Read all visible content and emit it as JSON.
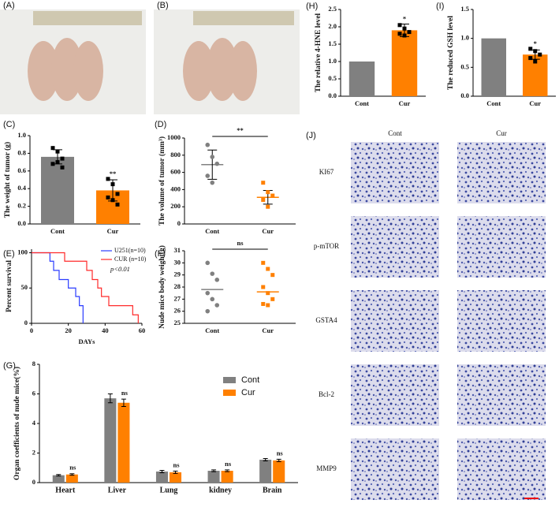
{
  "photos": [
    {
      "label": "(A)"
    },
    {
      "label": "(B)"
    }
  ],
  "ihc": {
    "label": "(J)",
    "columns": [
      "Cont",
      "Cur"
    ],
    "rows": [
      "KI67",
      "p-mTOR",
      "GSTA4",
      "Bcl-2",
      "MMP9"
    ]
  },
  "chart_data": [
    {
      "type": "bar",
      "panel": "(C)",
      "ylabel": "The weight of tumor (g)",
      "categories": [
        "Cont",
        "Cur"
      ],
      "values": [
        0.76,
        0.38
      ],
      "errors": [
        0.08,
        0.12
      ],
      "colors": [
        "#808080",
        "#ff8000"
      ],
      "points": [
        [
          0.86,
          0.82,
          0.74,
          0.68,
          0.7,
          0.64
        ],
        [
          0.51,
          0.45,
          0.34,
          0.3,
          0.27,
          0.22
        ]
      ],
      "significance": [
        null,
        "**"
      ],
      "ylim": [
        0,
        1.0
      ],
      "yticks": [
        {
          "value": 0,
          "label": "0.0"
        },
        {
          "value": 0.2,
          "label": "0.2"
        },
        {
          "value": 0.4,
          "label": "0.4"
        },
        {
          "value": 0.6,
          "label": "0.6"
        },
        {
          "value": 0.8,
          "label": "0.8"
        },
        {
          "value": 1.0,
          "label": "1.0"
        }
      ]
    },
    {
      "type": "dot",
      "panel": "(D)",
      "ylabel": "The volume of tumor (mm³)",
      "categories": [
        "Cont",
        "Cur"
      ],
      "values": [
        690,
        310
      ],
      "errors": [
        170,
        80
      ],
      "colors": [
        "#808080",
        "#ff8000"
      ],
      "points": [
        [
          920,
          780,
          700,
          560,
          480
        ],
        [
          480,
          370,
          330,
          280,
          200
        ]
      ],
      "bracket_label": "**",
      "ylim": [
        0,
        1000
      ],
      "yticks": [
        0,
        200,
        400,
        600,
        800,
        1000
      ]
    },
    {
      "type": "survival",
      "panel": "(E)",
      "ylabel": "Percent survival",
      "xlabel": "DAYs",
      "series": [
        {
          "name": "U251(n=10)",
          "color": "#2b3cff",
          "x": [
            0,
            10,
            12,
            15,
            20,
            24,
            26,
            28
          ],
          "values": [
            100,
            88,
            75,
            62,
            50,
            38,
            25,
            0
          ]
        },
        {
          "name": "CUR (n=10)",
          "color": "#ff2a2a",
          "x": [
            0,
            18,
            30,
            33,
            36,
            38,
            42,
            55,
            58
          ],
          "values": [
            100,
            88,
            75,
            62,
            50,
            38,
            25,
            12,
            0
          ]
        }
      ],
      "annotation": "p<0.01",
      "xlim": [
        0,
        60
      ],
      "xticks": [
        0,
        20,
        40,
        60
      ],
      "ylim": [
        0,
        105
      ],
      "yticks": [
        0,
        50,
        100
      ]
    },
    {
      "type": "dot",
      "panel": "(F)",
      "ylabel": "Nude mice body weight(g)",
      "categories": [
        "Cont",
        "Cur"
      ],
      "values": [
        27.8,
        27.6
      ],
      "colors": [
        "#808080",
        "#ff8000"
      ],
      "points": [
        [
          30,
          29.1,
          28.6,
          27.5,
          27,
          26.5,
          26
        ],
        [
          30,
          29.5,
          29,
          28,
          27.5,
          27,
          26.6,
          26.5
        ]
      ],
      "bracket_label": "ns",
      "ylim": [
        25,
        31
      ],
      "yticks": [
        25,
        26,
        27,
        28,
        29,
        30,
        31
      ]
    },
    {
      "type": "grouped-bar",
      "panel": "(G)",
      "ylabel": "Organ coefficients of nude mice(%)",
      "categories": [
        "Heart",
        "Liver",
        "Lung",
        "kidney",
        "Brain"
      ],
      "series": [
        {
          "name": "Cont",
          "color": "#808080",
          "values": [
            0.5,
            5.7,
            0.75,
            0.8,
            1.55
          ],
          "errors": [
            0.05,
            0.3,
            0.08,
            0.06,
            0.08
          ]
        },
        {
          "name": "Cur",
          "color": "#ff8000",
          "values": [
            0.55,
            5.4,
            0.7,
            0.8,
            1.5
          ],
          "errors": [
            0.05,
            0.25,
            0.08,
            0.06,
            0.08
          ]
        }
      ],
      "significance": [
        "ns",
        "ns",
        "ns",
        "ns",
        "ns"
      ],
      "ylim": [
        0,
        8
      ],
      "yticks": [
        0,
        2,
        4,
        6,
        8
      ]
    },
    {
      "type": "bar",
      "panel": "(H)",
      "ylabel": "The relative 4-HNE level",
      "categories": [
        "Cont",
        "Cur"
      ],
      "values": [
        1.0,
        1.9
      ],
      "errors": [
        0,
        0.18
      ],
      "colors": [
        "#808080",
        "#ff8000"
      ],
      "points": [
        [],
        [
          2.05,
          1.95,
          1.85,
          1.8,
          1.75
        ]
      ],
      "significance": [
        null,
        "*"
      ],
      "ylim": [
        0,
        2.5
      ],
      "yticks": [
        {
          "value": 0,
          "label": "0.0"
        },
        {
          "value": 0.5,
          "label": "0.5"
        },
        {
          "value": 1.0,
          "label": "1.0"
        },
        {
          "value": 1.5,
          "label": "1.5"
        },
        {
          "value": 2.0,
          "label": "2.0"
        },
        {
          "value": 2.5,
          "label": "2.5"
        }
      ]
    },
    {
      "type": "bar",
      "panel": "(I)",
      "ylabel": "The reduced GSH level",
      "categories": [
        "Cont",
        "Cur"
      ],
      "values": [
        1.0,
        0.72
      ],
      "errors": [
        0,
        0.08
      ],
      "colors": [
        "#808080",
        "#ff8000"
      ],
      "points": [
        [],
        [
          0.82,
          0.78,
          0.72,
          0.66,
          0.6
        ]
      ],
      "significance": [
        null,
        "*"
      ],
      "ylim": [
        0,
        1.5
      ],
      "yticks": [
        {
          "value": 0,
          "label": "0.0"
        },
        {
          "value": 0.5,
          "label": "0.5"
        },
        {
          "value": 1.0,
          "label": "1.0"
        },
        {
          "value": 1.5,
          "label": "1.5"
        }
      ]
    }
  ]
}
